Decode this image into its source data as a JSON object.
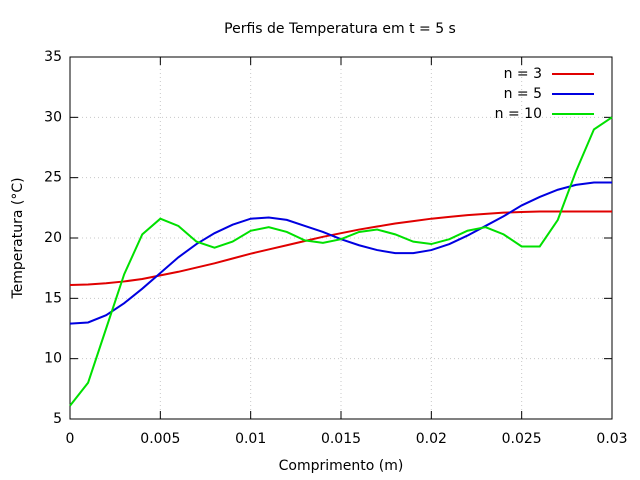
{
  "chart_data": {
    "type": "line",
    "title": "Perfis de Temperatura em t = 5 s",
    "x_label": "Comprimento (m)",
    "y_label": "Temperatura (°C)",
    "x": [
      0,
      0.001,
      0.002,
      0.003,
      0.004,
      0.005,
      0.006,
      0.007,
      0.008,
      0.009,
      0.01,
      0.011,
      0.012,
      0.013,
      0.014,
      0.015,
      0.016,
      0.017,
      0.018,
      0.019,
      0.02,
      0.021,
      0.022,
      0.023,
      0.024,
      0.025,
      0.026,
      0.027,
      0.028,
      0.029,
      0.03
    ],
    "series": [
      {
        "name": "n = 3",
        "color": "#e00000",
        "values": [
          16.1,
          16.15,
          16.25,
          16.4,
          16.6,
          16.9,
          17.2,
          17.55,
          17.9,
          18.3,
          18.7,
          19.05,
          19.4,
          19.75,
          20.1,
          20.4,
          20.7,
          20.95,
          21.2,
          21.4,
          21.6,
          21.75,
          21.9,
          22.0,
          22.1,
          22.15,
          22.2,
          22.2,
          22.2,
          22.2,
          22.2
        ]
      },
      {
        "name": "n = 5",
        "color": "#0000e0",
        "values": [
          12.9,
          13.0,
          13.6,
          14.6,
          15.8,
          17.1,
          18.4,
          19.5,
          20.4,
          21.1,
          21.6,
          21.7,
          21.5,
          21.0,
          20.5,
          19.9,
          19.4,
          19.0,
          18.75,
          18.75,
          19.0,
          19.5,
          20.2,
          21.0,
          21.8,
          22.7,
          23.4,
          24.0,
          24.4,
          24.6,
          24.6
        ]
      },
      {
        "name": "n = 10",
        "color": "#00e000",
        "values": [
          6.1,
          8.0,
          12.5,
          17.0,
          20.3,
          21.6,
          21.0,
          19.7,
          19.2,
          19.7,
          20.6,
          20.9,
          20.5,
          19.8,
          19.6,
          19.9,
          20.5,
          20.7,
          20.3,
          19.7,
          19.5,
          19.9,
          20.6,
          20.9,
          20.3,
          19.3,
          19.3,
          21.5,
          25.5,
          29.0,
          30.0
        ]
      }
    ],
    "xlim": [
      0,
      0.03
    ],
    "xticks": [
      0,
      0.005,
      0.01,
      0.015,
      0.02,
      0.025,
      0.03
    ],
    "ylim": [
      5,
      35
    ],
    "yticks": [
      5,
      10,
      15,
      20,
      25,
      30,
      35
    ],
    "grid": true,
    "legend": "top-right"
  }
}
